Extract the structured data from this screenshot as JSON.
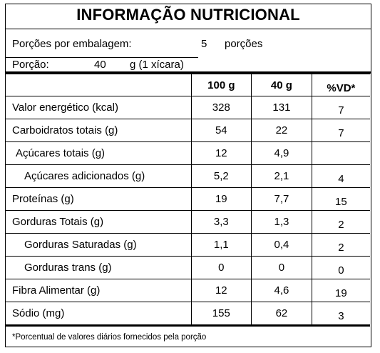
{
  "title": "INFORMAÇÃO NUTRICIONAL",
  "servings": {
    "label": "Porções por embalagem:",
    "value": "5",
    "unit": "porções"
  },
  "portion": {
    "label": "Porção:",
    "value": "40",
    "unit": "g (1 xícara)"
  },
  "columns": [
    "100 g",
    "40 g",
    "%VD*"
  ],
  "rows": [
    {
      "label": "Valor energético (kcal)",
      "per100": "328",
      "per40": "131",
      "vd": "7"
    },
    {
      "label": "Carboidratos totais (g)",
      "per100": "54",
      "per40": "22",
      "vd": "7"
    },
    {
      "label": "Açúcares totais (g)",
      "per100": "12",
      "per40": "4,9",
      "vd": ""
    },
    {
      "label": "Açúcares adicionados (g)",
      "per100": "5,2",
      "per40": "2,1",
      "vd": "4"
    },
    {
      "label": "Proteínas (g)",
      "per100": "19",
      "per40": "7,7",
      "vd": "15"
    },
    {
      "label": "Gorduras Totais (g)",
      "per100": "3,3",
      "per40": "1,3",
      "vd": "2"
    },
    {
      "label": "Gorduras Saturadas (g)",
      "per100": "1,1",
      "per40": "0,4",
      "vd": "2"
    },
    {
      "label": "Gorduras trans (g)",
      "per100": "0",
      "per40": "0",
      "vd": "0"
    },
    {
      "label": "Fibra Alimentar (g)",
      "per100": "12",
      "per40": "4,6",
      "vd": "19"
    },
    {
      "label": "Sódio (mg)",
      "per100": "155",
      "per40": "62",
      "vd": "3"
    }
  ],
  "footnote": "*Porcentual de valores diários fornecidos pela porção"
}
